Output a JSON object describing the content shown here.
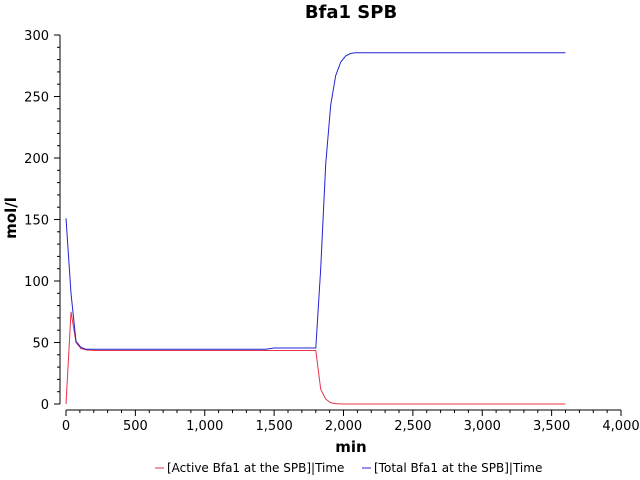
{
  "chart_data": {
    "type": "line",
    "title": "Bfa1 SPB",
    "xlabel": "min",
    "ylabel": "mol/l",
    "xlim": [
      0,
      4000
    ],
    "ylim": [
      0,
      300
    ],
    "x_ticks": [
      0,
      500,
      1000,
      1500,
      2000,
      2500,
      3000,
      3500,
      4000
    ],
    "x_tick_labels": [
      "0",
      "500",
      "1,000",
      "1,500",
      "2,000",
      "2,500",
      "3,000",
      "3,500",
      "4,000"
    ],
    "y_ticks": [
      0,
      50,
      100,
      150,
      200,
      250,
      300
    ],
    "y_tick_labels": [
      "0",
      "50",
      "100",
      "150",
      "200",
      "250",
      "300"
    ],
    "grid": false,
    "legend_position": "bottom",
    "series": [
      {
        "name": "[Active Bfa1 at the SPB]|Time",
        "color": "#e8334a",
        "points": [
          [
            0,
            0
          ],
          [
            36,
            75
          ],
          [
            72,
            50
          ],
          [
            108,
            45
          ],
          [
            144,
            44
          ],
          [
            200,
            43.5
          ],
          [
            500,
            43.5
          ],
          [
            1000,
            43.5
          ],
          [
            1500,
            43.5
          ],
          [
            1700,
            43.5
          ],
          [
            1800,
            43.5
          ],
          [
            1836,
            12
          ],
          [
            1872,
            4
          ],
          [
            1908,
            1
          ],
          [
            1944,
            0.3
          ],
          [
            2000,
            0
          ],
          [
            2500,
            0
          ],
          [
            3000,
            0
          ],
          [
            3600,
            0
          ]
        ]
      },
      {
        "name": "[Total Bfa1 at the SPB]|Time",
        "color": "#2323d4",
        "points": [
          [
            0,
            151
          ],
          [
            36,
            90
          ],
          [
            72,
            51
          ],
          [
            108,
            46
          ],
          [
            144,
            44.5
          ],
          [
            200,
            44.5
          ],
          [
            500,
            44.5
          ],
          [
            1000,
            44.5
          ],
          [
            1440,
            44.5
          ],
          [
            1500,
            45.5
          ],
          [
            1800,
            45.5
          ],
          [
            1836,
            110
          ],
          [
            1872,
            195
          ],
          [
            1908,
            243
          ],
          [
            1944,
            267
          ],
          [
            1980,
            278
          ],
          [
            2016,
            283
          ],
          [
            2052,
            285
          ],
          [
            2088,
            285.5
          ],
          [
            2500,
            285.5
          ],
          [
            3000,
            285.5
          ],
          [
            3600,
            285.5
          ]
        ]
      }
    ]
  }
}
